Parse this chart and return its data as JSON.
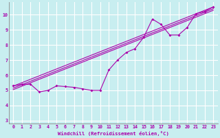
{
  "bg_color": "#c8eef0",
  "grid_color": "#aadddd",
  "line_color": "#aa00aa",
  "xlim": [
    -0.5,
    23.5
  ],
  "ylim": [
    2.8,
    10.8
  ],
  "xticks": [
    0,
    1,
    2,
    3,
    4,
    5,
    6,
    7,
    8,
    9,
    10,
    11,
    12,
    13,
    14,
    15,
    16,
    17,
    18,
    19,
    20,
    21,
    22,
    23
  ],
  "yticks": [
    3,
    4,
    5,
    6,
    7,
    8,
    9,
    10
  ],
  "xlabel": "Windchill (Refroidissement éolien,°C)",
  "series1_x": [
    0,
    1,
    2,
    3,
    4,
    5,
    6,
    7,
    8,
    9,
    10,
    11,
    12,
    13,
    14,
    15,
    16,
    17,
    18,
    19,
    20,
    21,
    22,
    23
  ],
  "series1_y": [
    5.3,
    5.4,
    5.4,
    4.9,
    5.0,
    5.3,
    5.25,
    5.2,
    5.1,
    5.0,
    5.0,
    6.35,
    7.0,
    7.5,
    7.75,
    8.5,
    9.7,
    9.35,
    8.65,
    8.65,
    9.15,
    10.05,
    10.2,
    10.5
  ],
  "trend1_x": [
    0,
    23
  ],
  "trend1_y": [
    5.28,
    10.5
  ],
  "trend2_x": [
    0,
    23
  ],
  "trend2_y": [
    5.15,
    10.38
  ],
  "trend3_x": [
    0,
    23
  ],
  "trend3_y": [
    5.05,
    10.28
  ]
}
